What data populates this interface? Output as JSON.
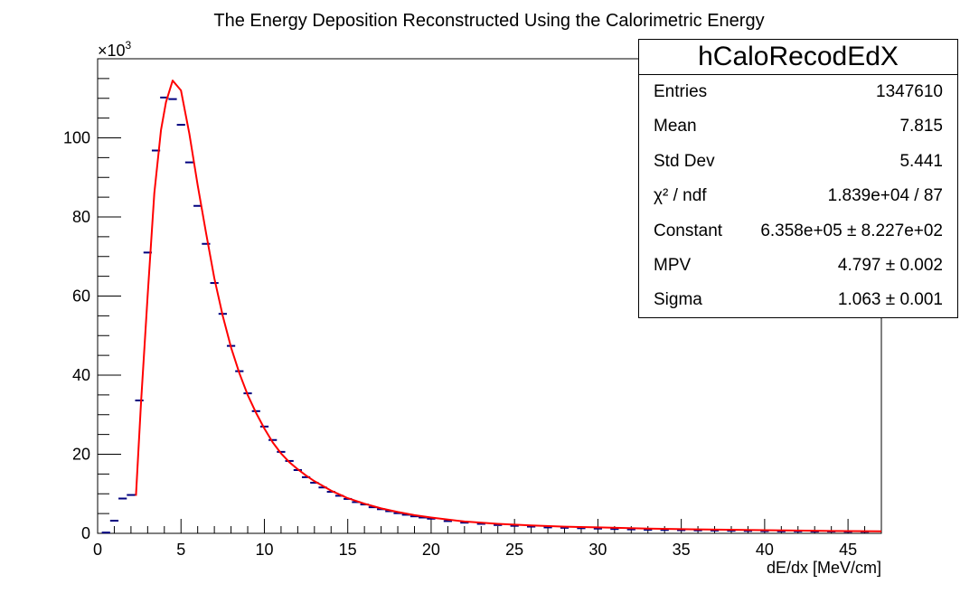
{
  "chart_data": {
    "type": "histogram",
    "title": "The Energy Deposition Reconstructed Using the Calorimetric Energy",
    "xlabel": "dE/dx [MeV/cm]",
    "ylabel": "",
    "y_multiplier_label": "×10",
    "y_multiplier_exp": "3",
    "xlim": [
      0,
      47
    ],
    "ylim": [
      0,
      120
    ],
    "xticks": [
      0,
      5,
      10,
      15,
      20,
      25,
      30,
      35,
      40,
      45
    ],
    "yticks": [
      0,
      20,
      40,
      60,
      80,
      100
    ],
    "bin_width": 0.5,
    "histogram": {
      "name": "hCaloRecodEdX",
      "color": "#00007f",
      "x": [
        0.5,
        1.0,
        1.5,
        2.0,
        2.5,
        3.0,
        3.5,
        4.0,
        4.5,
        5.0,
        5.5,
        6.0,
        6.5,
        7.0,
        7.5,
        8.0,
        8.5,
        9.0,
        9.5,
        10.0,
        10.5,
        11.0,
        11.5,
        12.0,
        12.5,
        13.0,
        13.5,
        14.0,
        14.5,
        15.0,
        15.5,
        16.0,
        16.5,
        17.0,
        17.5,
        18.0,
        18.5,
        19.0,
        19.5,
        20.0,
        21.0,
        22.0,
        23.0,
        24.0,
        25.0,
        26.0,
        27.0,
        28.0,
        29.0,
        30.0,
        31.0,
        32.0,
        33.0,
        34.0,
        35.0,
        36.0,
        37.0,
        38.0,
        39.0,
        40.0,
        41.0,
        42.0,
        43.0,
        44.0,
        45.0,
        46.0
      ],
      "y": [
        0.2,
        3.2,
        8.8,
        9.7,
        33.6,
        71.0,
        96.8,
        110.2,
        109.8,
        103.3,
        93.8,
        82.8,
        73.2,
        63.3,
        55.5,
        47.4,
        41.0,
        35.4,
        30.9,
        27.0,
        23.6,
        20.6,
        18.3,
        16.0,
        14.2,
        12.8,
        11.6,
        10.5,
        9.5,
        8.7,
        7.9,
        7.3,
        6.6,
        6.1,
        5.6,
        5.1,
        4.7,
        4.3,
        4.0,
        3.7,
        3.1,
        2.7,
        2.4,
        2.1,
        1.9,
        1.7,
        1.5,
        1.4,
        1.3,
        1.2,
        1.1,
        1.0,
        0.9,
        0.85,
        0.8,
        0.75,
        0.7,
        0.65,
        0.6,
        0.55,
        0.5,
        0.5,
        0.45,
        0.45,
        0.4,
        0.4
      ]
    },
    "fit": {
      "color": "#ff0000",
      "x": [
        2.3,
        2.6,
        3.0,
        3.4,
        3.8,
        4.1,
        4.5,
        5.0,
        5.5,
        6.0,
        6.5,
        7.0,
        7.5,
        8.0,
        8.5,
        9.0,
        9.5,
        10.0,
        10.5,
        11.0,
        11.5,
        12.0,
        12.5,
        13.0,
        14.0,
        15.0,
        16.0,
        17.0,
        18.0,
        19.0,
        20.0,
        22.0,
        24.0,
        26.0,
        28.0,
        30.0,
        33.0,
        36.0,
        40.0,
        44.0,
        47.0
      ],
      "y": [
        9.5,
        33.0,
        60.0,
        86.0,
        102.0,
        109.0,
        114.5,
        112.0,
        101.0,
        88.0,
        76.0,
        64.5,
        55.0,
        47.0,
        40.5,
        35.0,
        30.5,
        26.5,
        23.0,
        20.2,
        18.0,
        16.2,
        14.6,
        13.2,
        10.8,
        8.9,
        7.5,
        6.3,
        5.4,
        4.6,
        4.0,
        3.0,
        2.4,
        2.0,
        1.7,
        1.5,
        1.2,
        1.0,
        0.8,
        0.6,
        0.5
      ]
    }
  },
  "stats_box": {
    "title": "hCaloRecodEdX",
    "rows": [
      {
        "label": "Entries",
        "value": "1347610"
      },
      {
        "label": "Mean",
        "value": "7.815"
      },
      {
        "label": "Std Dev",
        "value": "5.441"
      },
      {
        "label": "χ² / ndf",
        "value": "1.839e+04 / 87"
      },
      {
        "label": "Constant",
        "value": "6.358e+05 ± 8.227e+02"
      },
      {
        "label": "MPV",
        "value": "4.797 ± 0.002"
      },
      {
        "label": "Sigma",
        "value": "1.063 ± 0.001"
      }
    ]
  }
}
